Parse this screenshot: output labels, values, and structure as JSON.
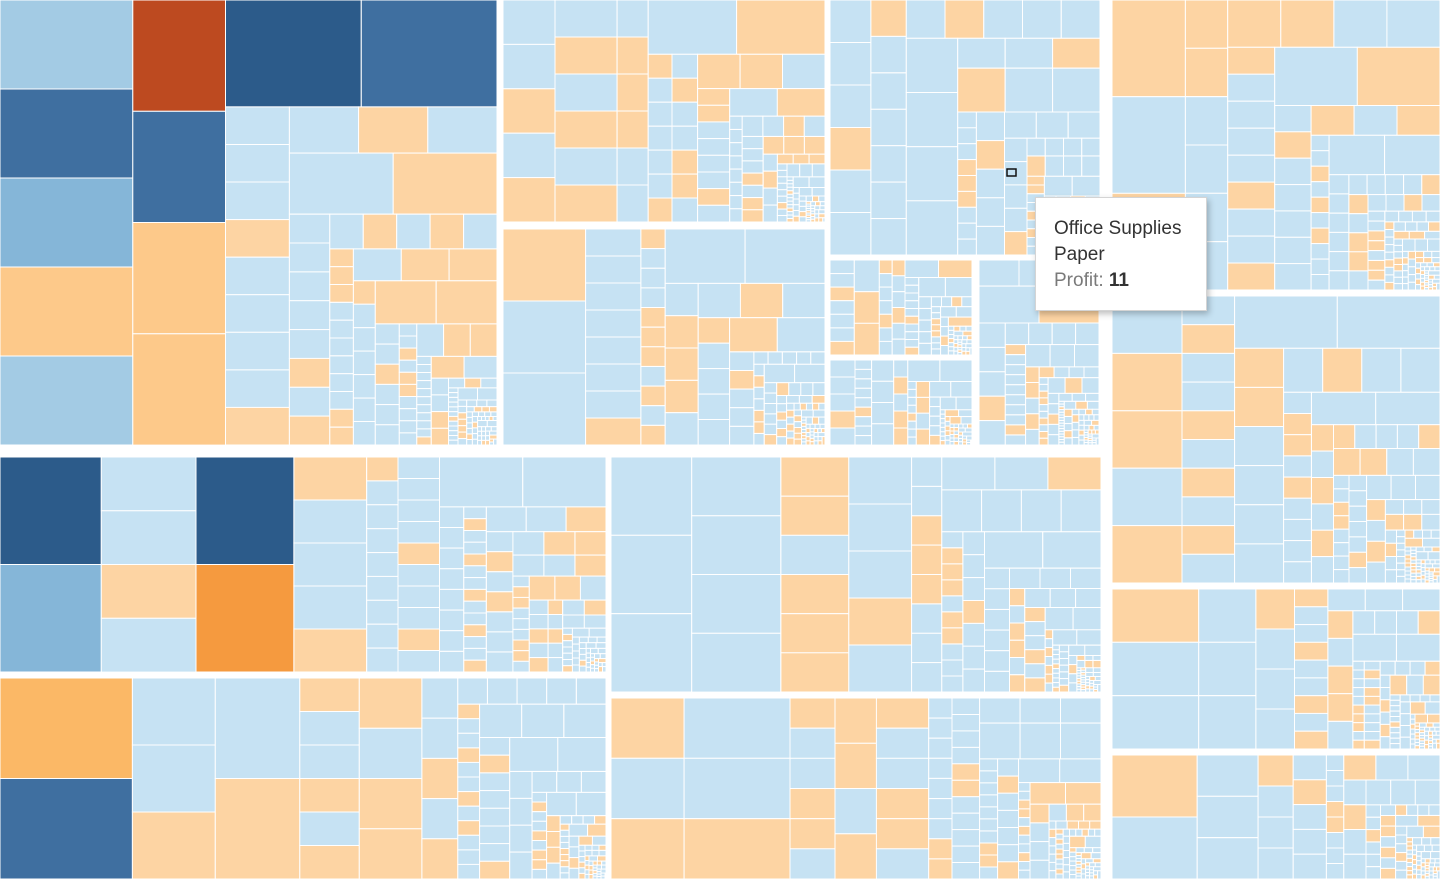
{
  "tooltip": {
    "category": "Office Supplies",
    "sub_category": "Paper",
    "measure_label": "Profit:",
    "measure_value": 11
  }
}
